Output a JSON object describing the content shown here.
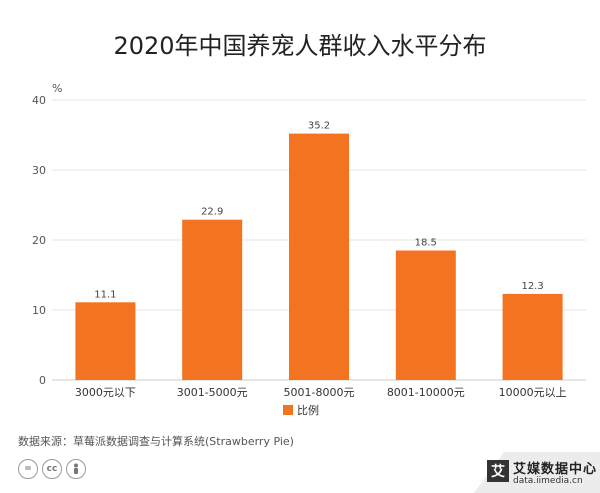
{
  "title": "2020年中国养宠人群收入水平分布",
  "chart_data": {
    "type": "bar",
    "title": "2020年中国养宠人群收入水平分布",
    "unit_label": "%",
    "categories": [
      "3000元以下",
      "3001-5000元",
      "5001-8000元",
      "8001-10000元",
      "10000元以上"
    ],
    "series": [
      {
        "name": "比例",
        "values": [
          11.1,
          22.9,
          35.2,
          18.5,
          12.3
        ],
        "color": "#f47320"
      }
    ],
    "ylim": [
      0,
      40
    ],
    "yticks": [
      0,
      10,
      20,
      30,
      40
    ],
    "grid": true,
    "legend": "bottom",
    "data_labels": true
  },
  "source": "数据来源：草莓派数据调查与计算系统(Strawberry Pie)",
  "license_icons": [
    "=",
    "cc",
    "person-icon"
  ],
  "logo": {
    "mark": "艾",
    "name": "艾媒数据中心",
    "url": "data.iimedia.cn"
  },
  "colors": {
    "bar": "#f47320",
    "grid": "#e6e6e6",
    "axis": "#cccccc"
  }
}
